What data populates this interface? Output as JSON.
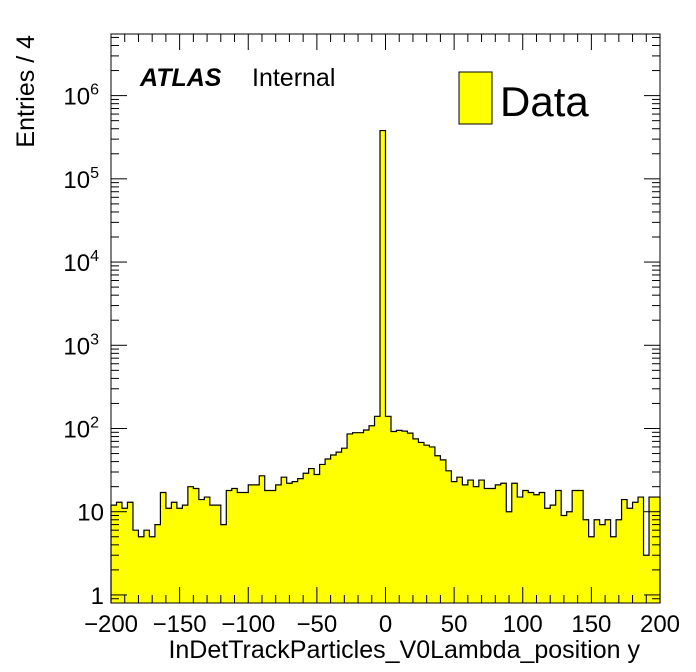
{
  "chart_data": {
    "type": "bar",
    "style": "histogram",
    "title": "",
    "xlabel": "InDetTrackParticles_V0Lambda_position y",
    "ylabel": "Entries / 4",
    "xlim": [
      -200,
      200
    ],
    "ylim": [
      0.8,
      5500000
    ],
    "yscale": "log",
    "bin_width": 4,
    "x_ticks": [
      -200,
      -150,
      -100,
      -50,
      0,
      50,
      100,
      150,
      200
    ],
    "x_tick_labels": [
      "−200",
      "−150",
      "−100",
      "−50",
      "0",
      "50",
      "100",
      "150",
      "200"
    ],
    "y_ticks": [
      1,
      10,
      100,
      1000,
      10000,
      100000,
      1000000
    ],
    "y_tick_labels": [
      {
        "base": "1",
        "exp": ""
      },
      {
        "base": "10",
        "exp": ""
      },
      {
        "base": "10",
        "exp": "2"
      },
      {
        "base": "10",
        "exp": "3"
      },
      {
        "base": "10",
        "exp": "4"
      },
      {
        "base": "10",
        "exp": "5"
      },
      {
        "base": "10",
        "exp": "6"
      }
    ],
    "grid": false,
    "legend_position": "top-right",
    "bin_edges_start": -200,
    "series": [
      {
        "name": "Data",
        "color": "#ffff00",
        "edgecolor": "#000000",
        "values": [
          12,
          13,
          11,
          13,
          6,
          5,
          6,
          5,
          7,
          17,
          11,
          13,
          11,
          12,
          20,
          19,
          14,
          15,
          12,
          12,
          7,
          18,
          19,
          17,
          17,
          21,
          21,
          27,
          18,
          18,
          21,
          26,
          22,
          23,
          25,
          29,
          33,
          28,
          37,
          43,
          48,
          52,
          58,
          86,
          89,
          89,
          96,
          108,
          140,
          380000,
          140,
          92,
          95,
          93,
          88,
          75,
          68,
          63,
          60,
          47,
          42,
          31,
          23,
          26,
          21,
          24,
          20,
          24,
          19,
          19,
          21,
          22,
          10,
          22,
          15,
          18,
          17,
          16,
          17,
          11,
          12,
          18,
          9,
          10,
          18,
          18,
          8,
          5,
          8,
          7,
          8,
          5,
          8,
          14,
          11,
          13,
          15,
          3,
          15,
          15
        ]
      }
    ]
  },
  "annotations": {
    "atlas_label": "ATLAS",
    "atlas_status": "Internal"
  },
  "legend": {
    "entries": [
      {
        "label": "Data",
        "color": "#ffff00"
      }
    ]
  }
}
